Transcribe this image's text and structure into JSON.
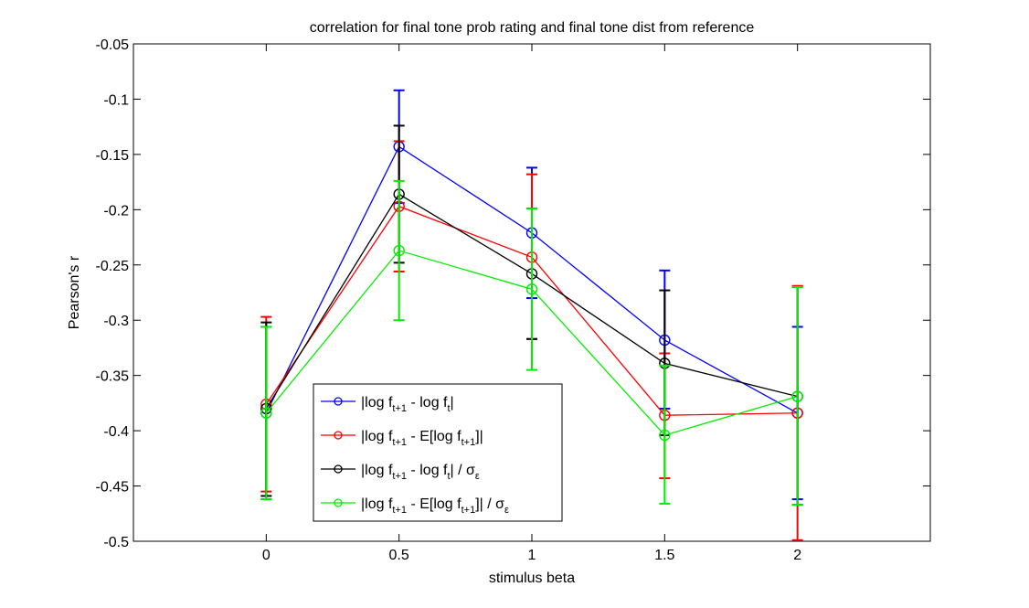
{
  "chart_data": {
    "type": "line",
    "title": "correlation for final tone prob rating and final tone dist from reference",
    "xlabel": "stimulus beta",
    "ylabel": "Pearson's r",
    "xlim": [
      -0.5,
      2.5
    ],
    "ylim": [
      -0.5,
      -0.05
    ],
    "x": [
      0,
      0.5,
      1,
      1.5,
      2
    ],
    "xticks": [
      "0",
      "0.5",
      "1",
      "1.5",
      "2"
    ],
    "yticks": [
      "-0.05",
      "-0.1",
      "-0.15",
      "-0.2",
      "-0.25",
      "-0.3",
      "-0.35",
      "-0.4",
      "-0.45",
      "-0.5"
    ],
    "grid": false,
    "legend_position": "bottom-left",
    "series": [
      {
        "name": "|log f_{t+1} - log f_t|",
        "color": "#0000ff",
        "values": [
          -0.384,
          -0.143,
          -0.221,
          -0.318,
          -0.384
        ],
        "err_low": [
          -0.462,
          -0.194,
          -0.28,
          -0.38,
          -0.462
        ],
        "err_high": [
          -0.306,
          -0.092,
          -0.162,
          -0.255,
          -0.306
        ]
      },
      {
        "name": "|log f_{t+1} - E[log f_{t+1}]|",
        "color": "#ff0000",
        "values": [
          -0.376,
          -0.197,
          -0.243,
          -0.386,
          -0.384
        ],
        "err_low": [
          -0.455,
          -0.256,
          -0.317,
          -0.443,
          -0.499
        ],
        "err_high": [
          -0.297,
          -0.138,
          -0.168,
          -0.33,
          -0.269
        ]
      },
      {
        "name": "|log f_{t+1} - log f_t| / σ_ε",
        "color": "#000000",
        "values": [
          -0.38,
          -0.186,
          -0.258,
          -0.339,
          -0.369
        ],
        "err_low": [
          -0.459,
          -0.248,
          -0.317,
          -0.404,
          -0.467
        ],
        "err_high": [
          -0.302,
          -0.124,
          -0.199,
          -0.273,
          -0.27
        ]
      },
      {
        "name": "|log f_{t+1} - E[log f_{t+1}]| / σ_ε",
        "color": "#00ee00",
        "values": [
          -0.384,
          -0.237,
          -0.272,
          -0.404,
          -0.369
        ],
        "err_low": [
          -0.462,
          -0.3,
          -0.345,
          -0.466,
          -0.467
        ],
        "err_high": [
          -0.306,
          -0.174,
          -0.199,
          -0.341,
          -0.27
        ]
      }
    ]
  }
}
